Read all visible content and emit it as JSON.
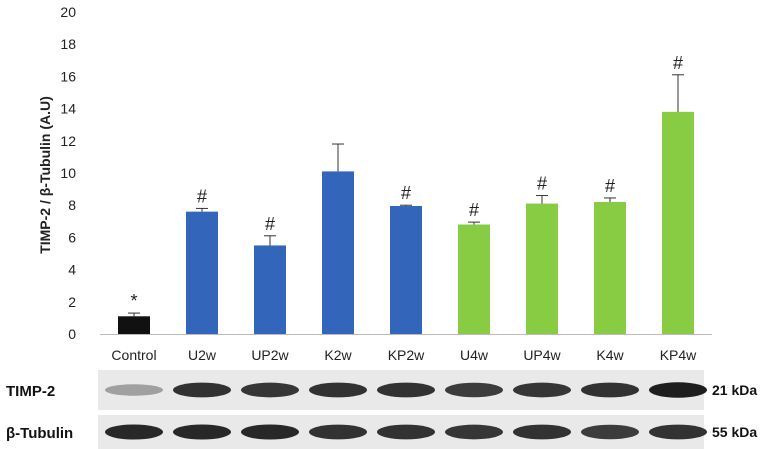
{
  "chart_data": {
    "type": "bar",
    "ylabel": "TIMP-2 / β-Tubulin (A.U)",
    "ylim": [
      0,
      20
    ],
    "yticks": [
      0,
      2,
      4,
      6,
      8,
      10,
      12,
      14,
      16,
      18,
      20
    ],
    "categories": [
      "Control",
      "U2w",
      "UP2w",
      "K2w",
      "KP2w",
      "U4w",
      "UP4w",
      "K4w",
      "KP4w"
    ],
    "values": [
      1.1,
      7.6,
      5.5,
      10.1,
      7.95,
      6.8,
      8.1,
      8.2,
      13.8
    ],
    "errors": [
      0.2,
      0.2,
      0.6,
      1.7,
      0.05,
      0.15,
      0.5,
      0.25,
      2.3
    ],
    "annotations": [
      "*",
      "#",
      "#",
      "",
      "#",
      "#",
      "#",
      "#",
      "#"
    ],
    "bar_colors": [
      "#111111",
      "#3366bb",
      "#3366bb",
      "#3366bb",
      "#3366bb",
      "#88cc44",
      "#88cc44",
      "#88cc44",
      "#88cc44"
    ],
    "grid": false
  },
  "blots": [
    {
      "label": "TIMP-2",
      "size": "21 kDa",
      "intensity": [
        0.25,
        0.8,
        0.78,
        0.8,
        0.8,
        0.75,
        0.78,
        0.8,
        0.9
      ]
    },
    {
      "label": "β-Tubulin",
      "size": "55 kDa",
      "intensity": [
        0.85,
        0.85,
        0.85,
        0.8,
        0.8,
        0.78,
        0.8,
        0.75,
        0.8
      ]
    }
  ]
}
